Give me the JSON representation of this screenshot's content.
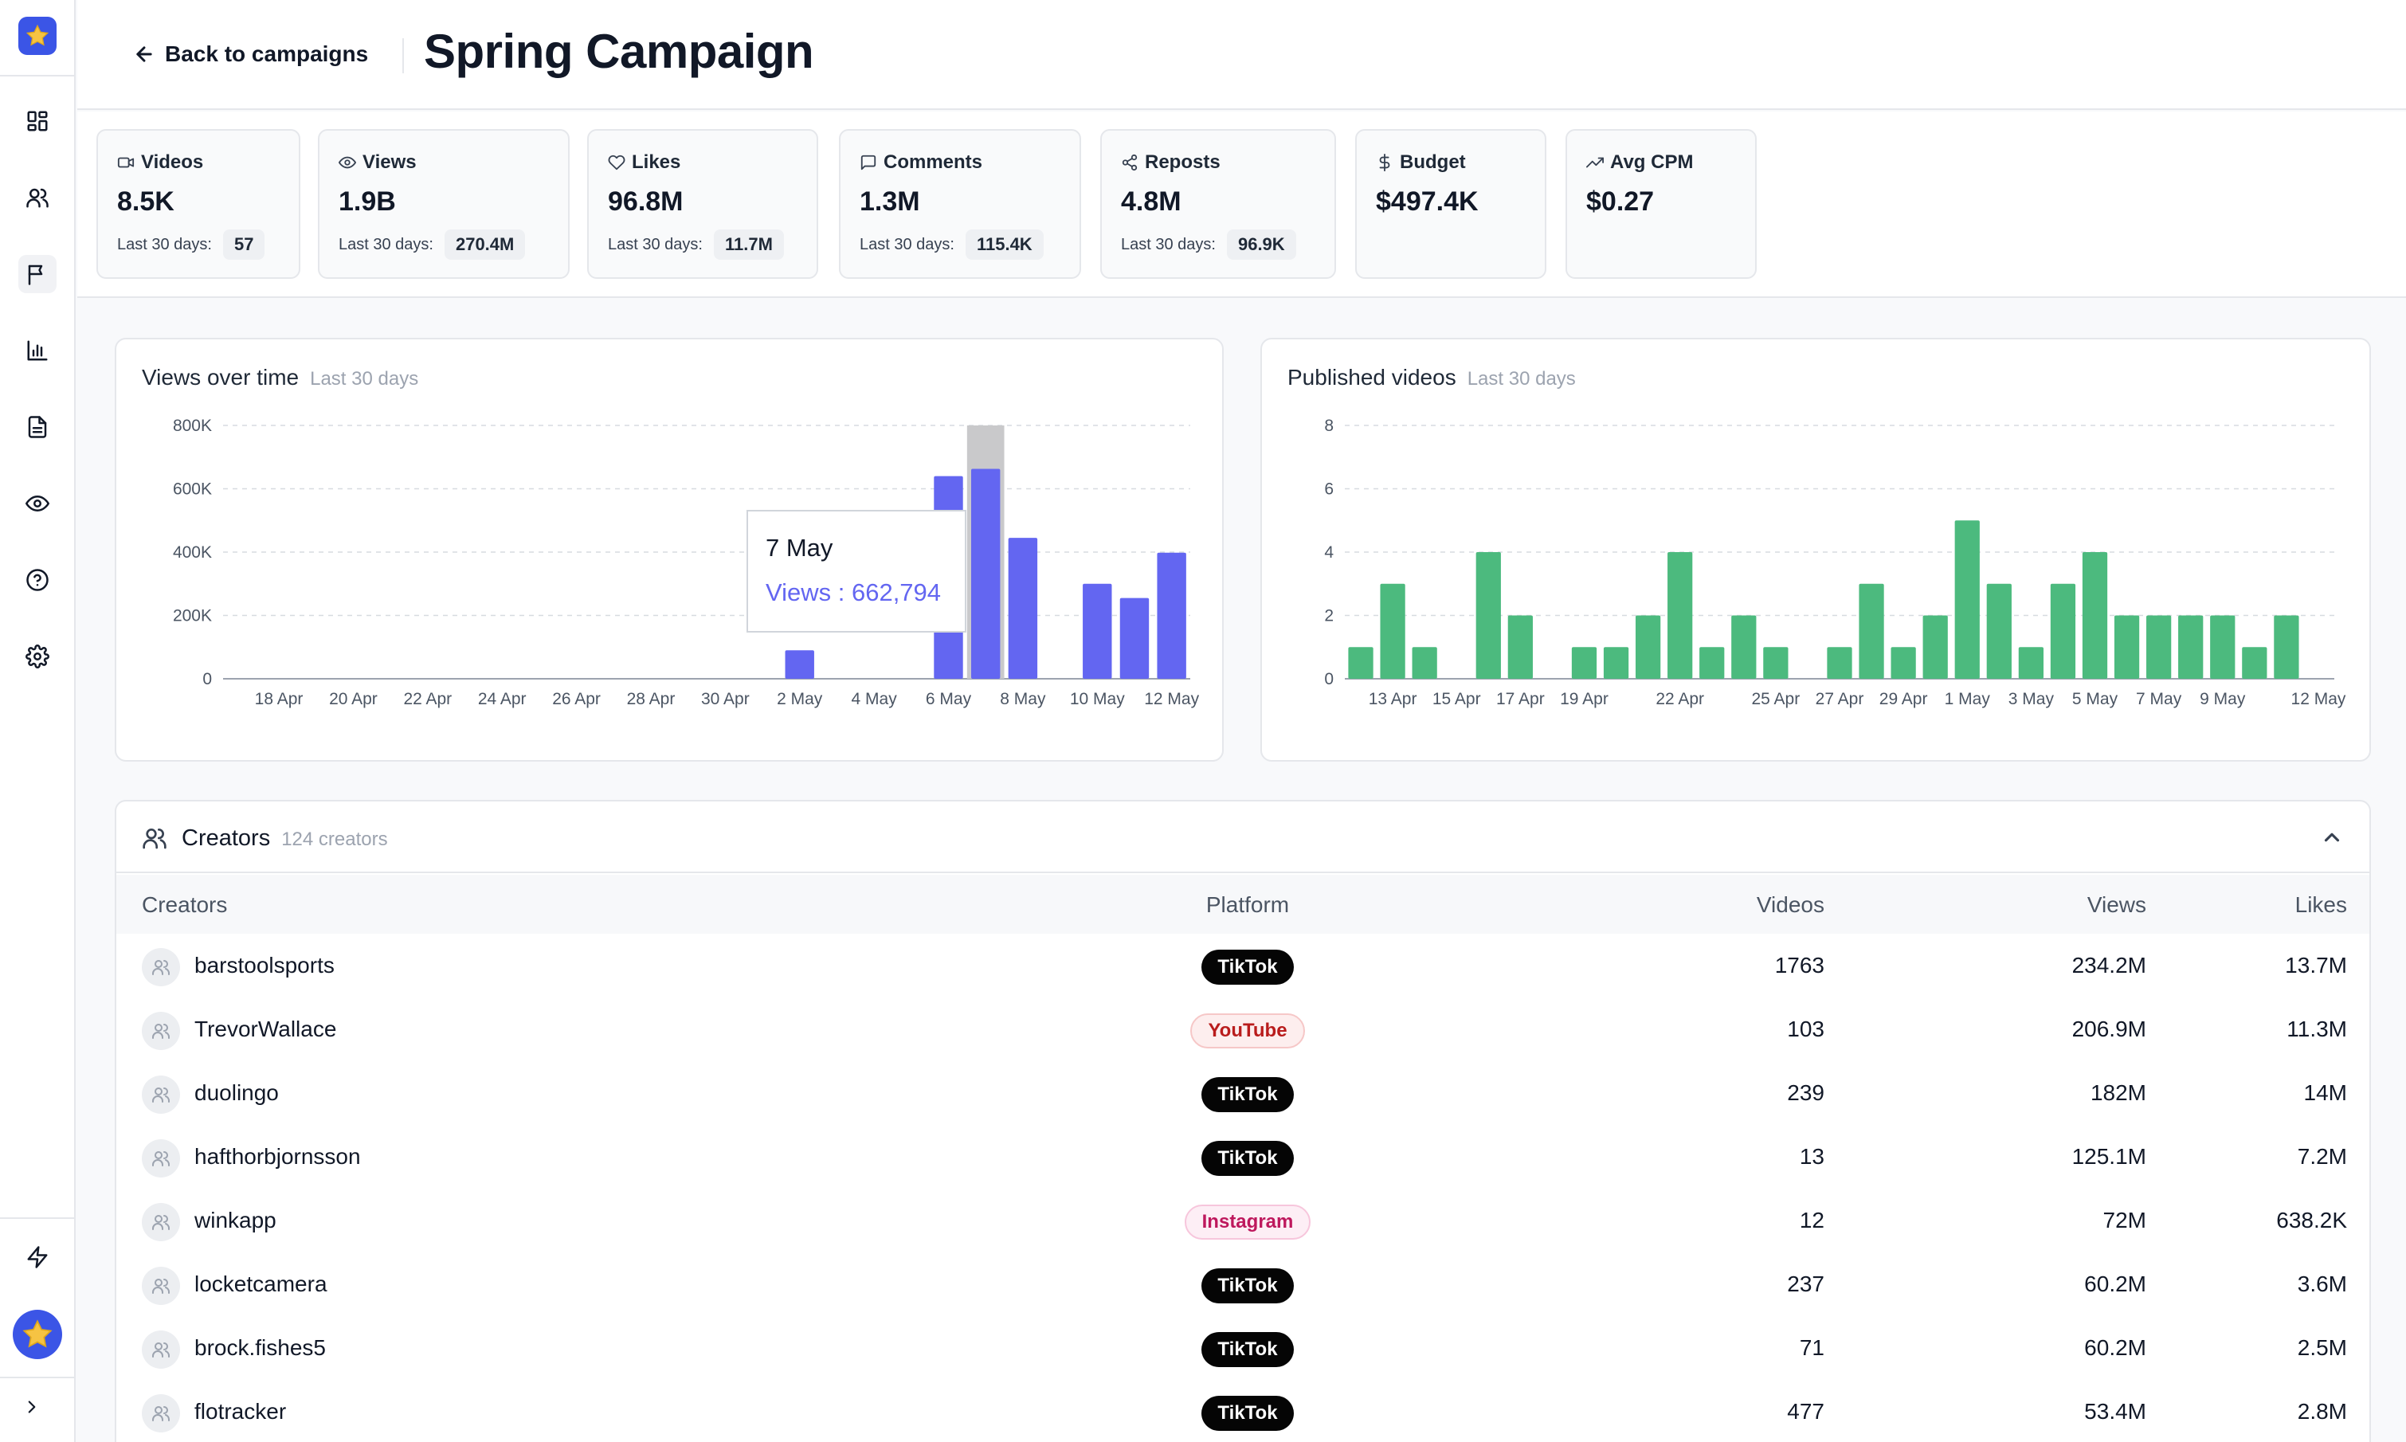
{
  "header": {
    "back_label": "Back to campaigns",
    "title": "Spring Campaign"
  },
  "stats": [
    {
      "label": "Videos",
      "value": "8.5K",
      "sub_label": "Last 30 days:",
      "sub_value": "57",
      "icon": "video-icon"
    },
    {
      "label": "Views",
      "value": "1.9B",
      "sub_label": "Last 30 days:",
      "sub_value": "270.4M",
      "icon": "eye-icon"
    },
    {
      "label": "Likes",
      "value": "96.8M",
      "sub_label": "Last 30 days:",
      "sub_value": "11.7M",
      "icon": "heart-icon"
    },
    {
      "label": "Comments",
      "value": "1.3M",
      "sub_label": "Last 30 days:",
      "sub_value": "115.4K",
      "icon": "comment-icon"
    },
    {
      "label": "Reposts",
      "value": "4.8M",
      "sub_label": "Last 30 days:",
      "sub_value": "96.9K",
      "icon": "share-icon"
    },
    {
      "label": "Budget",
      "value": "$497.4K",
      "icon": "dollar-icon"
    },
    {
      "label": "Avg CPM",
      "value": "$0.27",
      "icon": "trending-up-icon"
    }
  ],
  "views_card": {
    "title": "Views over time",
    "subtitle": "Last 30 days"
  },
  "videos_card": {
    "title": "Published videos",
    "subtitle": "Last 30 days"
  },
  "tooltip": {
    "date": "7 May",
    "text": "Views : 662,794"
  },
  "chart_data": [
    {
      "type": "bar",
      "title": "Views over time",
      "subtitle": "Last 30 days",
      "color": "#6366f1",
      "highlight_color": "#c9c9cb",
      "ylim": [
        0,
        800000
      ],
      "y_ticks": [
        0,
        200000,
        400000,
        600000,
        800000
      ],
      "y_tick_labels": [
        "0",
        "200K",
        "400K",
        "600K",
        "800K"
      ],
      "x_tick_labels": [
        "18 Apr",
        "20 Apr",
        "22 Apr",
        "24 Apr",
        "26 Apr",
        "28 Apr",
        "30 Apr",
        "2 May",
        "4 May",
        "6 May",
        "8 May",
        "10 May",
        "12 May"
      ],
      "categories": [
        "17 Apr",
        "18 Apr",
        "19 Apr",
        "20 Apr",
        "21 Apr",
        "22 Apr",
        "23 Apr",
        "24 Apr",
        "25 Apr",
        "26 Apr",
        "27 Apr",
        "28 Apr",
        "29 Apr",
        "30 Apr",
        "1 May",
        "2 May",
        "3 May",
        "4 May",
        "5 May",
        "6 May",
        "7 May",
        "8 May",
        "9 May",
        "10 May",
        "11 May",
        "12 May"
      ],
      "values": [
        0,
        0,
        0,
        0,
        0,
        0,
        0,
        0,
        0,
        0,
        0,
        0,
        0,
        0,
        0,
        90000,
        0,
        0,
        0,
        640000,
        662794,
        445000,
        0,
        300000,
        255000,
        398000
      ],
      "highlighted": "7 May"
    },
    {
      "type": "bar",
      "title": "Published videos",
      "subtitle": "Last 30 days",
      "color": "#4cba7e",
      "ylim": [
        0,
        8
      ],
      "y_ticks": [
        0,
        2,
        4,
        6,
        8
      ],
      "y_tick_labels": [
        "0",
        "2",
        "4",
        "6",
        "8"
      ],
      "x_tick_labels": [
        "13 Apr",
        "15 Apr",
        "17 Apr",
        "19 Apr",
        "22 Apr",
        "25 Apr",
        "27 Apr",
        "29 Apr",
        "1 May",
        "3 May",
        "5 May",
        "7 May",
        "9 May",
        "12 May"
      ],
      "categories": [
        "12 Apr",
        "13 Apr",
        "14 Apr",
        "15 Apr",
        "16 Apr",
        "17 Apr",
        "18 Apr",
        "19 Apr",
        "20 Apr",
        "21 Apr",
        "22 Apr",
        "23 Apr",
        "24 Apr",
        "25 Apr",
        "26 Apr",
        "27 Apr",
        "28 Apr",
        "29 Apr",
        "30 Apr",
        "1 May",
        "2 May",
        "3 May",
        "4 May",
        "5 May",
        "6 May",
        "7 May",
        "8 May",
        "9 May",
        "10 May",
        "11 May",
        "12 May"
      ],
      "values": [
        1,
        3,
        1,
        0,
        4,
        2,
        0,
        1,
        1,
        2,
        4,
        1,
        2,
        1,
        0,
        1,
        3,
        1,
        2,
        5,
        3,
        1,
        3,
        4,
        2,
        2,
        2,
        2,
        1,
        2,
        0
      ]
    }
  ],
  "creators": {
    "title": "Creators",
    "count_label": "124 creators",
    "columns": [
      "Creators",
      "Platform",
      "Videos",
      "Views",
      "Likes"
    ],
    "rows": [
      {
        "name": "barstoolsports",
        "platform": "TikTok",
        "videos": "1763",
        "views": "234.2M",
        "likes": "13.7M"
      },
      {
        "name": "TrevorWallace",
        "platform": "YouTube",
        "videos": "103",
        "views": "206.9M",
        "likes": "11.3M"
      },
      {
        "name": "duolingo",
        "platform": "TikTok",
        "videos": "239",
        "views": "182M",
        "likes": "14M"
      },
      {
        "name": "hafthorbjornsson",
        "platform": "TikTok",
        "videos": "13",
        "views": "125.1M",
        "likes": "7.2M"
      },
      {
        "name": "winkapp",
        "platform": "Instagram",
        "videos": "12",
        "views": "72M",
        "likes": "638.2K"
      },
      {
        "name": "locketcamera",
        "platform": "TikTok",
        "videos": "237",
        "views": "60.2M",
        "likes": "3.6M"
      },
      {
        "name": "brock.fishes5",
        "platform": "TikTok",
        "videos": "71",
        "views": "60.2M",
        "likes": "2.5M"
      },
      {
        "name": "flotracker",
        "platform": "TikTok",
        "videos": "477",
        "views": "53.4M",
        "likes": "2.8M"
      }
    ]
  },
  "colors": {
    "brand": "#3b55e6",
    "views_bar": "#6366f1",
    "videos_bar": "#4cba7e"
  }
}
